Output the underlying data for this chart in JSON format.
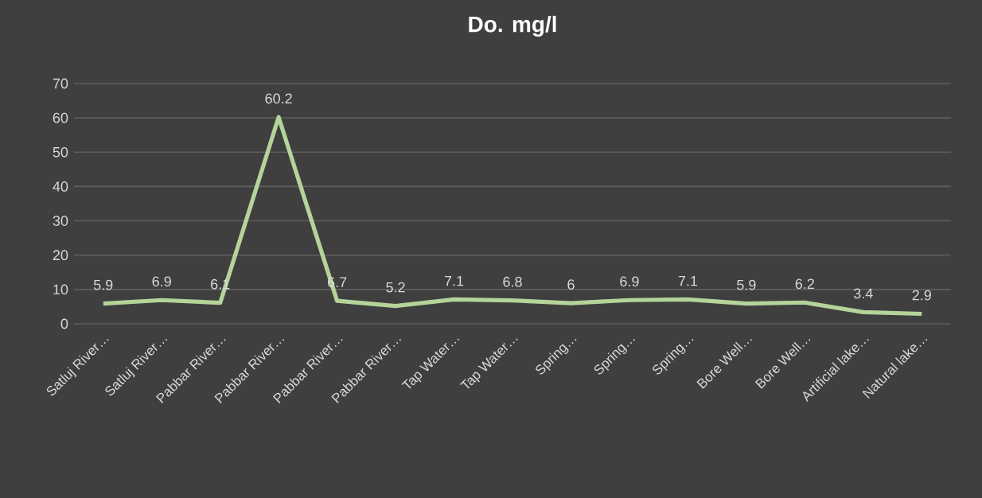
{
  "chart_data": {
    "type": "line",
    "title": "Do. mg/l",
    "categories": [
      "Satluj River…",
      "Satluj River…",
      "Pabbar River…",
      "Pabbar River…",
      "Pabbar River…",
      "Pabbar River…",
      "Tap Water…",
      "Tap Water…",
      "Spring…",
      "Spring…",
      "Spring…",
      "Bore Well…",
      "Bore Well…",
      "Artificial lake…",
      "Natural lake…"
    ],
    "values": [
      5.9,
      6.9,
      6.1,
      60.2,
      6.7,
      5.2,
      7.1,
      6.8,
      6,
      6.9,
      7.1,
      5.9,
      6.2,
      3.4,
      2.9
    ],
    "color": "#b4d49a",
    "ylim": [
      0,
      70
    ],
    "yticks": [
      0,
      10,
      20,
      30,
      40,
      50,
      60,
      70
    ],
    "grid": "y",
    "data_labels": true,
    "line_style": "solid"
  }
}
